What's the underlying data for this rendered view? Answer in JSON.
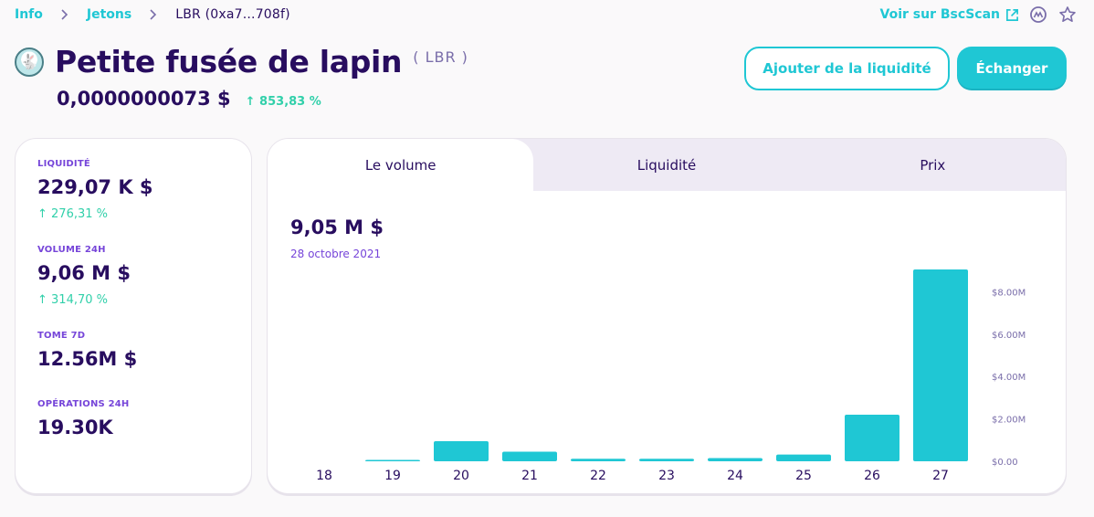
{
  "breadcrumb": {
    "home": "Info",
    "section": "Jetons",
    "current": "LBR  (0xa7...708f)"
  },
  "top_links": {
    "bscscan": "Voir sur BscScan",
    "icons": [
      "external-link-icon",
      "coinmarketcap-icon",
      "star-icon"
    ]
  },
  "token": {
    "name": "Petite fusée de lapin",
    "symbol": "( LBR )",
    "price": "0,0000000073 $",
    "price_change": "↑ 853,83 %"
  },
  "actions": {
    "add_liquidity": "Ajouter de la liquidité",
    "swap": "Échanger"
  },
  "stats": [
    {
      "label": "LIQUIDITÉ",
      "value": "229,07 K $",
      "change": "↑ 276,31 %"
    },
    {
      "label": "VOLUME 24H",
      "value": "9,06 M $",
      "change": "↑ 314,70 %"
    },
    {
      "label": "TOME 7D",
      "value": "12.56M $",
      "change": ""
    },
    {
      "label": "OPÉRATIONS 24H",
      "value": "19.30K",
      "change": ""
    }
  ],
  "chart_tabs": [
    "Le volume",
    "Liquidité",
    "Prix"
  ],
  "chart_header": {
    "value": "9,05 M $",
    "date": "28 octobre 2021"
  },
  "colors": {
    "accent": "#1fc7d4",
    "text": "#280d5f",
    "secondary": "#7645d9",
    "success": "#31d0aa",
    "tab_bg": "#eeeaf4"
  },
  "chart_data": {
    "type": "bar",
    "categories": [
      "18",
      "19",
      "20",
      "21",
      "22",
      "23",
      "24",
      "25",
      "26",
      "27"
    ],
    "values": [
      0,
      0.03,
      0.95,
      0.45,
      0.12,
      0.12,
      0.15,
      0.32,
      2.2,
      9.05
    ],
    "y_ticks": [
      "$0.00",
      "$2.00M",
      "$4.00M",
      "$6.00M",
      "$8.00M"
    ],
    "ylim": [
      0,
      9.05
    ],
    "grid": false,
    "color": "#1fc7d4"
  }
}
